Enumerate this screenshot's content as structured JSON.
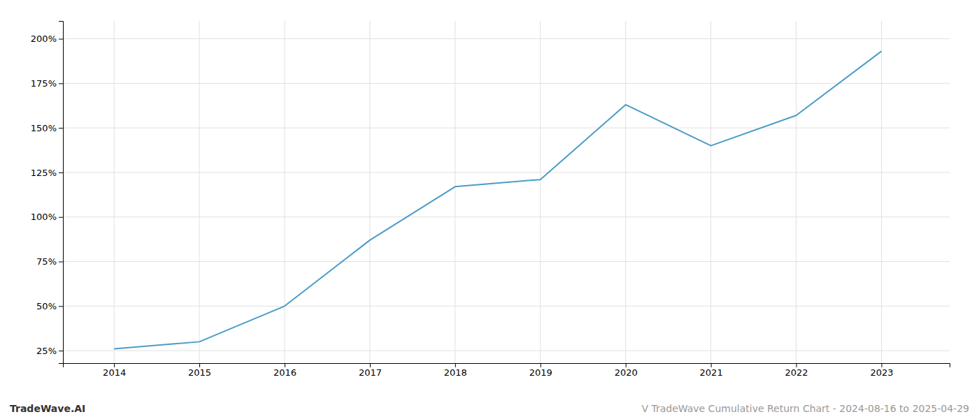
{
  "chart_data": {
    "type": "line",
    "x": [
      2014,
      2015,
      2016,
      2017,
      2018,
      2019,
      2020,
      2021,
      2022,
      2023
    ],
    "values": [
      26,
      30,
      50,
      87,
      117,
      121,
      163,
      140,
      157,
      193
    ],
    "color": "#4a9cc7",
    "xlim": [
      2013.4,
      2023.8
    ],
    "xticks": [
      2014,
      2015,
      2016,
      2017,
      2018,
      2019,
      2020,
      2021,
      2022,
      2023
    ],
    "ylim": [
      18,
      210
    ],
    "yticks": [
      {
        "value": 25,
        "label": "25%"
      },
      {
        "value": 50,
        "label": "50%"
      },
      {
        "value": 75,
        "label": "75%"
      },
      {
        "value": 100,
        "label": "100%"
      },
      {
        "value": 125,
        "label": "125%"
      },
      {
        "value": 150,
        "label": "150%"
      },
      {
        "value": 175,
        "label": "175%"
      },
      {
        "value": 200,
        "label": "200%"
      }
    ],
    "grid": true,
    "annotations": [
      "TradeWave.AI",
      "V TradeWave Cumulative Return Chart - 2024-08-16 to 2025-04-29"
    ]
  }
}
